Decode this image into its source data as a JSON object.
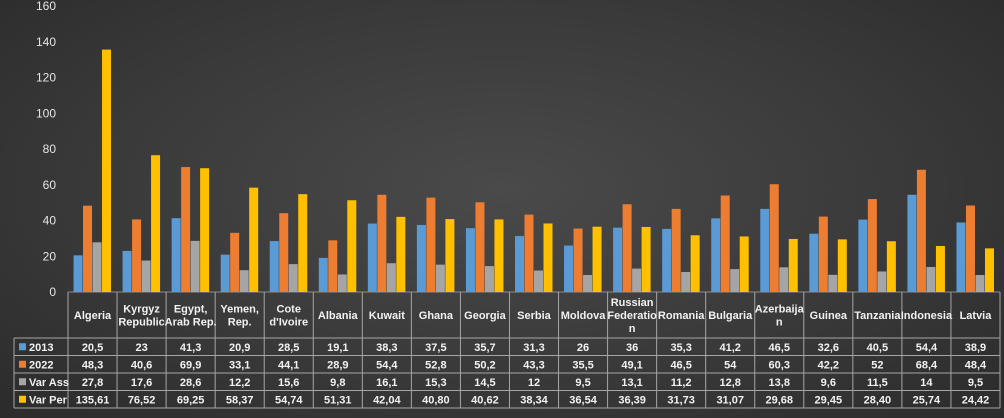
{
  "chart_data": {
    "type": "bar",
    "title": "",
    "xlabel": "",
    "ylabel": "",
    "ylim": [
      0,
      160
    ],
    "yticks": [
      0,
      20,
      40,
      60,
      80,
      100,
      120,
      140,
      160
    ],
    "grid": false,
    "legend": "data-table-left",
    "categories": [
      "Algeria",
      "Kyrgyz Republic",
      "Egypt, Arab Rep.",
      "Yemen, Rep.",
      "Cote d'Ivoire",
      "Albania",
      "Kuwait",
      "Ghana",
      "Georgia",
      "Serbia",
      "Moldova",
      "Russian Federation",
      "Romania",
      "Bulgaria",
      "Azerbaijan",
      "Guinea",
      "Tanzania",
      "Indonesia",
      "Latvia"
    ],
    "category_lines": [
      [
        "Algeria"
      ],
      [
        "Kyrgyz",
        "Republic"
      ],
      [
        "Egypt,",
        "Arab Rep."
      ],
      [
        "Yemen,",
        "Rep."
      ],
      [
        "Cote",
        "d'Ivoire"
      ],
      [
        "Albania"
      ],
      [
        "Kuwait"
      ],
      [
        "Ghana"
      ],
      [
        "Georgia"
      ],
      [
        "Serbia"
      ],
      [
        "Moldova"
      ],
      [
        "Russian",
        "Federatio",
        "n"
      ],
      [
        "Romania"
      ],
      [
        "Bulgaria"
      ],
      [
        "Azerbaija",
        "n"
      ],
      [
        "Guinea"
      ],
      [
        "Tanzania"
      ],
      [
        "Indonesia"
      ],
      [
        "Latvia"
      ]
    ],
    "series": [
      {
        "name": "2013",
        "color": "#5b9bd5",
        "values": [
          20.5,
          23,
          41.3,
          20.9,
          28.5,
          19.1,
          38.3,
          37.5,
          35.7,
          31.3,
          26,
          36,
          35.3,
          41.2,
          46.5,
          32.6,
          40.5,
          54.4,
          38.9
        ],
        "labels": [
          "20,5",
          "23",
          "41,3",
          "20,9",
          "28,5",
          "19,1",
          "38,3",
          "37,5",
          "35,7",
          "31,3",
          "26",
          "36",
          "35,3",
          "41,2",
          "46,5",
          "32,6",
          "40,5",
          "54,4",
          "38,9"
        ]
      },
      {
        "name": "2022",
        "color": "#ed7d31",
        "values": [
          48.3,
          40.6,
          69.9,
          33.1,
          44.1,
          28.9,
          54.4,
          52.8,
          50.2,
          43.3,
          35.5,
          49.1,
          46.5,
          54,
          60.3,
          42.2,
          52,
          68.4,
          48.4
        ],
        "labels": [
          "48,3",
          "40,6",
          "69,9",
          "33,1",
          "44,1",
          "28,9",
          "54,4",
          "52,8",
          "50,2",
          "43,3",
          "35,5",
          "49,1",
          "46,5",
          "54",
          "60,3",
          "42,2",
          "52",
          "68,4",
          "48,4"
        ]
      },
      {
        "name": "Var Ass",
        "color": "#a5a5a5",
        "values": [
          27.8,
          17.6,
          28.6,
          12.2,
          15.6,
          9.8,
          16.1,
          15.3,
          14.5,
          12,
          9.5,
          13.1,
          11.2,
          12.8,
          13.8,
          9.6,
          11.5,
          14,
          9.5
        ],
        "labels": [
          "27,8",
          "17,6",
          "28,6",
          "12,2",
          "15,6",
          "9,8",
          "16,1",
          "15,3",
          "14,5",
          "12",
          "9,5",
          "13,1",
          "11,2",
          "12,8",
          "13,8",
          "9,6",
          "11,5",
          "14",
          "9,5"
        ]
      },
      {
        "name": "Var Per",
        "color": "#ffc000",
        "values": [
          135.61,
          76.52,
          69.25,
          58.37,
          54.74,
          51.31,
          42.04,
          40.8,
          40.62,
          38.34,
          36.54,
          36.39,
          31.73,
          31.07,
          29.68,
          29.45,
          28.4,
          25.74,
          24.42
        ],
        "labels": [
          "135,61",
          "76,52",
          "69,25",
          "58,37",
          "54,74",
          "51,31",
          "42,04",
          "40,80",
          "40,62",
          "38,34",
          "36,54",
          "36,39",
          "31,73",
          "31,07",
          "29,68",
          "29,45",
          "28,40",
          "25,74",
          "24,42"
        ]
      }
    ]
  }
}
